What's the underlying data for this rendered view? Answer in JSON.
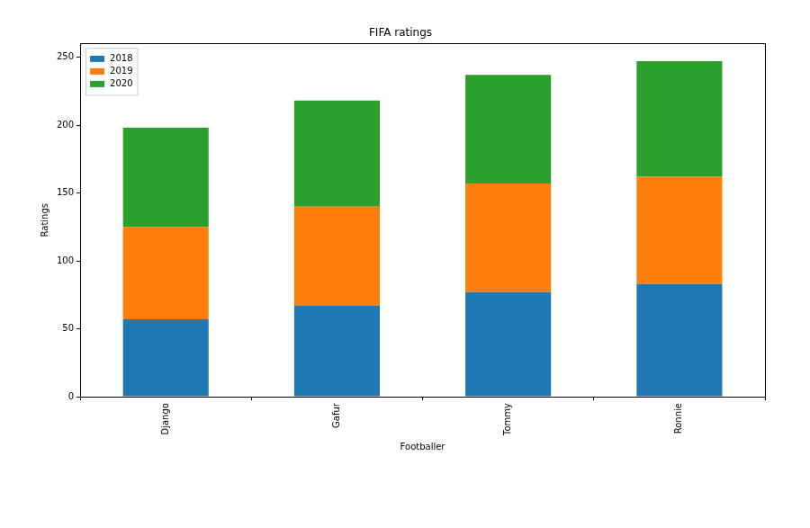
{
  "chart_data": {
    "type": "bar",
    "title": "FIFA ratings",
    "x_label": "Footballer",
    "y_label": "Ratings",
    "categories": [
      "Django",
      "Gafur",
      "Tommy",
      "Ronnie"
    ],
    "series": [
      {
        "name": "2018",
        "color": "#1f77b4",
        "values": [
          57,
          67,
          77,
          83
        ]
      },
      {
        "name": "2019",
        "color": "#ff7f0e",
        "values": [
          68,
          73,
          80,
          79
        ]
      },
      {
        "name": "2020",
        "color": "#2ca02c",
        "values": [
          73,
          78,
          80,
          85
        ]
      }
    ],
    "stacked": true,
    "ylim": [
      0,
      260
    ],
    "yticks": [
      0,
      50,
      100,
      150,
      200,
      250
    ],
    "grid": false,
    "legend": "upper left"
  }
}
